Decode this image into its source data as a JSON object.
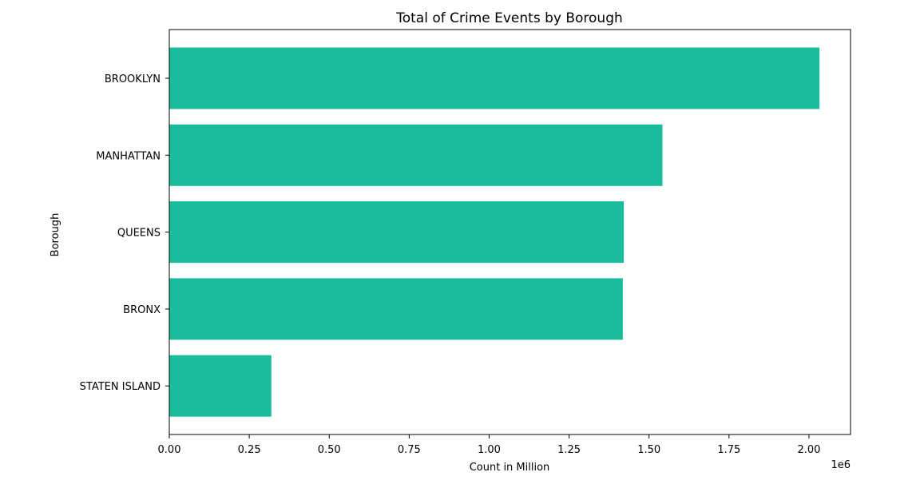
{
  "chart_data": {
    "type": "bar",
    "orientation": "horizontal",
    "title": "Total of Crime Events by Borough",
    "xlabel": "Count in Million",
    "ylabel": "Borough",
    "x_offset_label": "1e6",
    "categories": [
      "BROOKLYN",
      "MANHATTAN",
      "QUEENS",
      "BRONX",
      "STATEN ISLAND"
    ],
    "values": [
      2033000,
      1542000,
      1421000,
      1418000,
      319000
    ],
    "xlim": [
      0,
      2130000
    ],
    "x_ticks": [
      0,
      250000,
      500000,
      750000,
      1000000,
      1250000,
      1500000,
      1750000,
      2000000
    ],
    "x_tick_labels": [
      "0.00",
      "0.25",
      "0.50",
      "0.75",
      "1.00",
      "1.25",
      "1.50",
      "1.75",
      "2.00"
    ],
    "bar_color": "#1abc9c",
    "grid": false,
    "legend": false
  }
}
